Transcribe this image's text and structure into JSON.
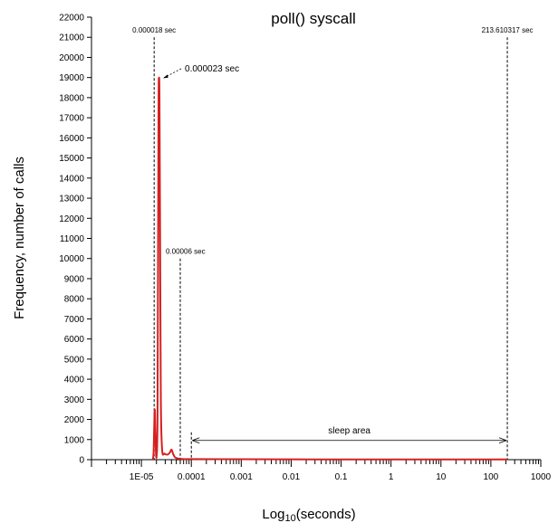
{
  "chart_data": {
    "type": "line",
    "title": "poll() syscall",
    "xlabel_main": "Log",
    "xlabel_sub": "10",
    "xlabel_tail": "(seconds)",
    "ylabel": "Frequency, number of calls",
    "x_scale": "log",
    "xlim": [
      1e-06,
      1000
    ],
    "ylim": [
      0,
      22000
    ],
    "y_ticks": [
      0,
      1000,
      2000,
      3000,
      4000,
      5000,
      6000,
      7000,
      8000,
      9000,
      10000,
      11000,
      12000,
      13000,
      14000,
      15000,
      16000,
      17000,
      18000,
      19000,
      20000,
      21000,
      22000
    ],
    "x_tick_labels": [
      {
        "value": 1e-05,
        "label": "1E-05"
      },
      {
        "value": 0.0001,
        "label": "0.0001"
      },
      {
        "value": 0.001,
        "label": "0.001"
      },
      {
        "value": 0.01,
        "label": "0.01"
      },
      {
        "value": 0.1,
        "label": "0.1"
      },
      {
        "value": 1,
        "label": "1"
      },
      {
        "value": 10,
        "label": "10"
      },
      {
        "value": 100,
        "label": "100"
      },
      {
        "value": 1000,
        "label": "1000"
      }
    ],
    "grid": false,
    "line_color": "#d62020",
    "series": [
      {
        "x": [
          1.68e-05,
          1.75e-05,
          1.8e-05,
          1.85e-05,
          1.9e-05,
          1.96e-05,
          2.02e-05,
          2.1e-05,
          2.2e-05,
          2.25e-05,
          2.3e-05,
          2.36e-05,
          2.45e-05,
          2.6e-05,
          2.9e-05,
          3.3e-05,
          3.7e-05,
          4e-05,
          4.3e-05,
          4.6e-05,
          5e-05,
          6e-05,
          8e-05,
          0.0001,
          0.001,
          0.01,
          0.1,
          1,
          10,
          100,
          213.610317
        ],
        "y": [
          0,
          300,
          1500,
          2500,
          1500,
          300,
          200,
          2000,
          17000,
          18900,
          18000,
          12000,
          3000,
          500,
          300,
          250,
          350,
          500,
          300,
          150,
          80,
          40,
          20,
          30,
          20,
          15,
          10,
          10,
          10,
          10,
          10
        ]
      }
    ],
    "vlines": [
      {
        "x": 1.8e-05,
        "y_top": 21000,
        "label": "0.000018 sec",
        "label_side": "center"
      },
      {
        "x": 6e-05,
        "y_top": 10000,
        "label": "0.00006 sec",
        "label_side": "right"
      },
      {
        "x": 213.610317,
        "y_top": 21000,
        "label": "213.610317 sec",
        "label_side": "center"
      }
    ],
    "peak_annotation": {
      "x": 2.3e-05,
      "y": 18900,
      "label": "0.000023 sec"
    },
    "sleep_area": {
      "x_start": 0.0001,
      "x_end": 213.610317,
      "y": 1000,
      "label": "sleep area"
    }
  }
}
